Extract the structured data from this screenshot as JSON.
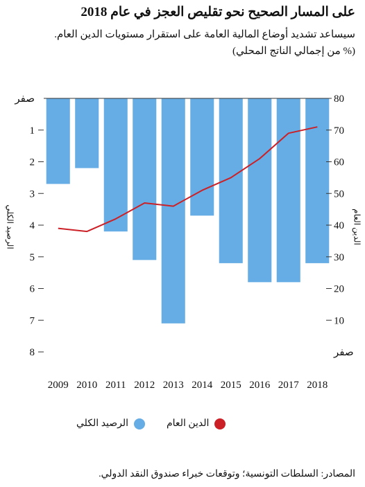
{
  "header": {
    "title": "على المسار الصحيح نحو تقليص العجز في عام 2018",
    "subtitle": "سيساعد تشديد أوضاع المالية العامة على استقرار مستويات الدين العام.",
    "unit": "(% من إجمالي الناتج المحلي)"
  },
  "legend": {
    "balance_label": "الرصيد الكلي",
    "debt_label": "الدين العام"
  },
  "source": "المصادر: السلطات التونسية؛ وتوقعات خبراء صندوق النقد الدولي.",
  "colors": {
    "bar": "#65ade4",
    "line": "#cc2027",
    "axis": "#333333"
  },
  "chart_data": {
    "type": "bar+line",
    "categories": [
      "2009",
      "2010",
      "2011",
      "2012",
      "2013",
      "2014",
      "2015",
      "2016",
      "2017",
      "2018"
    ],
    "series": [
      {
        "name": "الرصيد الكلي",
        "type": "bar",
        "axis": "left",
        "values": [
          2.7,
          2.2,
          4.2,
          5.1,
          7.1,
          3.7,
          5.2,
          5.8,
          5.8,
          5.2
        ]
      },
      {
        "name": "الدين العام",
        "type": "line",
        "axis": "right",
        "values": [
          39,
          38,
          42,
          47,
          46,
          51,
          55,
          61,
          69,
          71
        ]
      }
    ],
    "left_axis": {
      "label": "الرصيد الكلي",
      "ticks": [
        "صفر",
        "1",
        "2",
        "3",
        "4",
        "5",
        "6",
        "7",
        "8"
      ],
      "min": 0,
      "max": 8,
      "inverted": true
    },
    "right_axis": {
      "label": "الدين العام",
      "ticks": [
        "صفر",
        "10",
        "20",
        "30",
        "40",
        "50",
        "60",
        "70",
        "80"
      ],
      "min": 0,
      "max": 80
    },
    "grid": false
  }
}
